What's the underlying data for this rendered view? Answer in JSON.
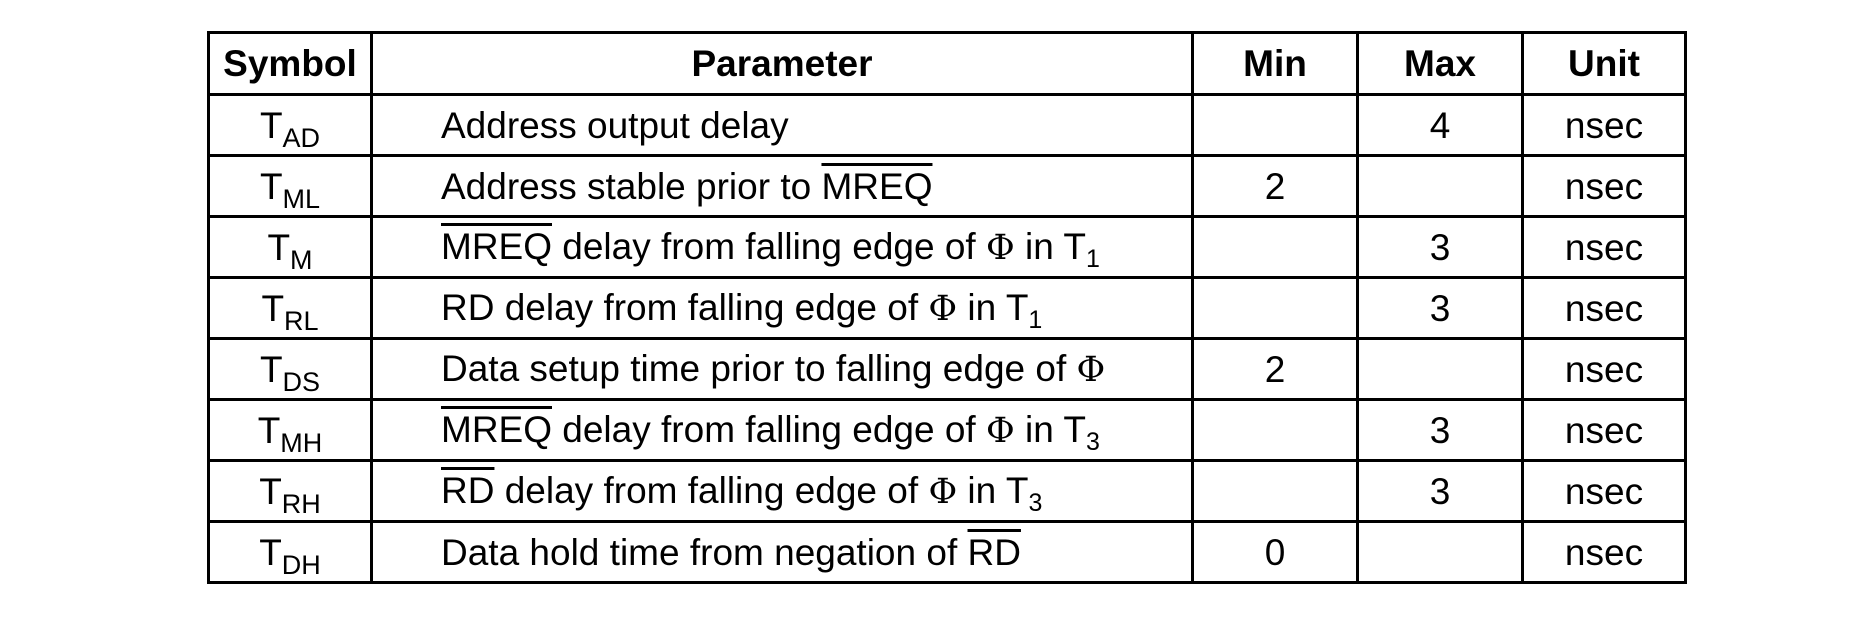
{
  "table": {
    "headers": {
      "symbol": "Symbol",
      "parameter": "Parameter",
      "min": "Min",
      "max": "Max",
      "unit": "Unit"
    },
    "rows": [
      {
        "symbol": {
          "base": "T",
          "sub": "AD"
        },
        "parameter": [
          {
            "t": "Address output delay"
          }
        ],
        "min": "",
        "max": "4",
        "unit": "nsec"
      },
      {
        "symbol": {
          "base": "T",
          "sub": "ML"
        },
        "parameter": [
          {
            "t": "Address stable prior to "
          },
          {
            "t": "MREQ",
            "overline": true
          }
        ],
        "min": "2",
        "max": "",
        "unit": "nsec"
      },
      {
        "symbol": {
          "base": "T",
          "sub": "M"
        },
        "parameter": [
          {
            "t": "MREQ",
            "overline": true
          },
          {
            "t": " delay from falling edge of "
          },
          {
            "t": "Φ",
            "phi": true
          },
          {
            "t": " in T"
          },
          {
            "t": "1",
            "sub": true
          }
        ],
        "min": "",
        "max": "3",
        "unit": "nsec"
      },
      {
        "symbol": {
          "base": "T",
          "sub": "RL"
        },
        "parameter": [
          {
            "t": "RD delay from falling edge of "
          },
          {
            "t": "Φ",
            "phi": true
          },
          {
            "t": " in T"
          },
          {
            "t": "1",
            "sub": true
          }
        ],
        "min": "",
        "max": "3",
        "unit": "nsec"
      },
      {
        "symbol": {
          "base": "T",
          "sub": "DS"
        },
        "parameter": [
          {
            "t": "Data setup time prior to falling edge of "
          },
          {
            "t": "Φ",
            "phi": true
          }
        ],
        "min": "2",
        "max": "",
        "unit": "nsec"
      },
      {
        "symbol": {
          "base": "T",
          "sub": "MH"
        },
        "parameter": [
          {
            "t": "MREQ",
            "overline": true
          },
          {
            "t": " delay from falling edge of "
          },
          {
            "t": "Φ",
            "phi": true
          },
          {
            "t": " in T"
          },
          {
            "t": "3",
            "sub": true
          }
        ],
        "min": "",
        "max": "3",
        "unit": "nsec"
      },
      {
        "symbol": {
          "base": "T",
          "sub": "RH"
        },
        "parameter": [
          {
            "t": "RD",
            "overline": true
          },
          {
            "t": " delay from falling edge of "
          },
          {
            "t": "Φ",
            "phi": true
          },
          {
            "t": " in T"
          },
          {
            "t": "3",
            "sub": true
          }
        ],
        "min": "",
        "max": "3",
        "unit": "nsec"
      },
      {
        "symbol": {
          "base": "T",
          "sub": "DH"
        },
        "parameter": [
          {
            "t": "Data hold time from negation of "
          },
          {
            "t": "RD",
            "overline": true
          }
        ],
        "min": "0",
        "max": "",
        "unit": "nsec"
      }
    ]
  }
}
